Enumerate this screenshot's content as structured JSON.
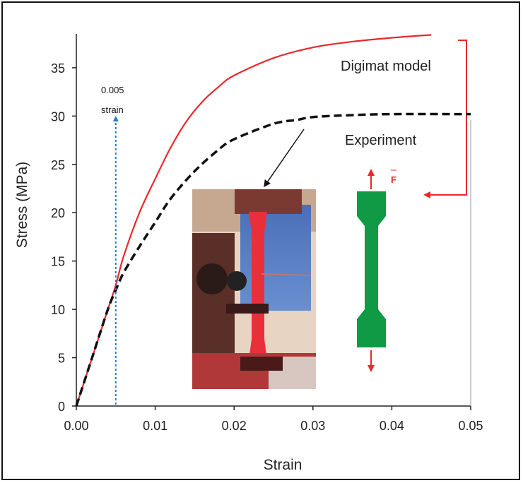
{
  "chart_data": {
    "type": "line",
    "xlabel": "Strain",
    "ylabel": "Stress (MPa)",
    "xlim": [
      0,
      0.05
    ],
    "ylim": [
      0,
      38.5
    ],
    "x_ticks": [
      "0.00",
      "0.01",
      "0.02",
      "0.03",
      "0.04",
      "0.05"
    ],
    "y_ticks": [
      "0",
      "5",
      "10",
      "15",
      "20",
      "25",
      "30",
      "35"
    ],
    "series": [
      {
        "name": "Digimat model",
        "color": "#e8282b",
        "style": "solid",
        "points": [
          [
            0,
            0
          ],
          [
            0.002,
            5
          ],
          [
            0.004,
            10
          ],
          [
            0.005,
            12.5
          ],
          [
            0.006,
            15.5
          ],
          [
            0.008,
            20
          ],
          [
            0.01,
            23.5
          ],
          [
            0.012,
            26.8
          ],
          [
            0.014,
            29.5
          ],
          [
            0.016,
            31.5
          ],
          [
            0.018,
            33
          ],
          [
            0.02,
            34.2
          ],
          [
            0.025,
            36
          ],
          [
            0.03,
            37.1
          ],
          [
            0.035,
            37.7
          ],
          [
            0.04,
            38.1
          ],
          [
            0.045,
            38.4
          ]
        ]
      },
      {
        "name": "Experiment",
        "color": "#111111",
        "style": "dashed",
        "points": [
          [
            0,
            0
          ],
          [
            0.002,
            5
          ],
          [
            0.004,
            10
          ],
          [
            0.005,
            12
          ],
          [
            0.006,
            13.8
          ],
          [
            0.008,
            16.5
          ],
          [
            0.01,
            19
          ],
          [
            0.012,
            21.5
          ],
          [
            0.015,
            24.3
          ],
          [
            0.018,
            26.5
          ],
          [
            0.02,
            27.6
          ],
          [
            0.025,
            29.2
          ],
          [
            0.028,
            29.6
          ],
          [
            0.03,
            29.9
          ],
          [
            0.035,
            30.1
          ],
          [
            0.04,
            30.2
          ],
          [
            0.05,
            30.2
          ]
        ]
      }
    ],
    "annotations": {
      "strain_marker": {
        "x": 0.005,
        "label_line1": "0.005",
        "label_line2": "strain",
        "color": "#2a7ac0"
      },
      "force_label": "F"
    },
    "grid": false,
    "legend": "inline labels"
  },
  "colors": {
    "specimen": "#109a45",
    "arrow_red": "#e8282b",
    "marker_blue": "#2a7ac0"
  }
}
